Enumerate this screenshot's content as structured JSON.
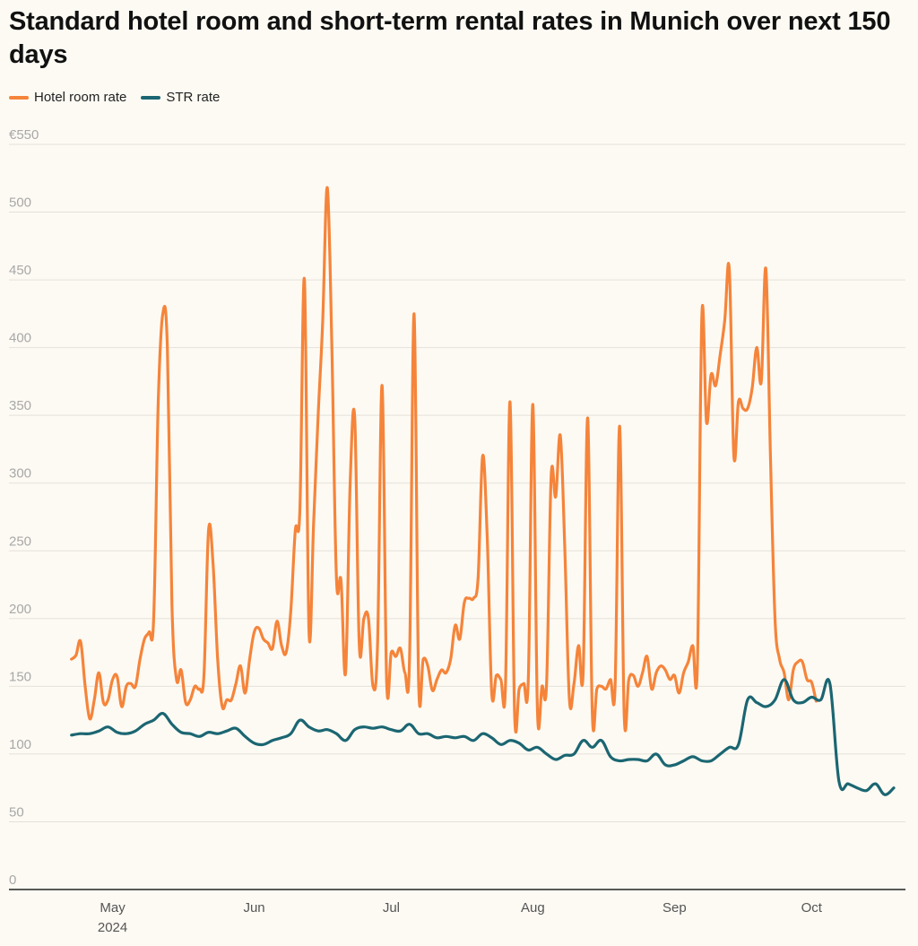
{
  "colors": {
    "hotel": "#f5843a",
    "str": "#1b6672",
    "grid": "#e4e1da",
    "axis": "#222222",
    "tick_text": "#a8a8a8",
    "x_tick_text": "#555555"
  },
  "chart_data": {
    "type": "line",
    "title": "Standard hotel room and short-term rental rates in Munich over next 150 days",
    "xlabel": "",
    "ylabel": "",
    "ylim": [
      0,
      550
    ],
    "xlim": [
      "2024-04-25",
      "2024-10-19"
    ],
    "y_ticks": [
      {
        "value": 550,
        "label": "€550"
      },
      {
        "value": 500,
        "label": "500"
      },
      {
        "value": 450,
        "label": "450"
      },
      {
        "value": 400,
        "label": "400"
      },
      {
        "value": 350,
        "label": "350"
      },
      {
        "value": 300,
        "label": "300"
      },
      {
        "value": 250,
        "label": "250"
      },
      {
        "value": 200,
        "label": "200"
      },
      {
        "value": 150,
        "label": "150"
      },
      {
        "value": 100,
        "label": "100"
      },
      {
        "value": 50,
        "label": "50"
      },
      {
        "value": 0,
        "label": "0"
      }
    ],
    "x_ticks": [
      {
        "date": "2024-05-01",
        "label": "May",
        "sublabel": "2024"
      },
      {
        "date": "2024-06-01",
        "label": "Jun",
        "sublabel": ""
      },
      {
        "date": "2024-07-01",
        "label": "Jul",
        "sublabel": ""
      },
      {
        "date": "2024-08-01",
        "label": "Aug",
        "sublabel": ""
      },
      {
        "date": "2024-09-01",
        "label": "Sep",
        "sublabel": ""
      },
      {
        "date": "2024-10-01",
        "label": "Oct",
        "sublabel": ""
      }
    ],
    "grid": true,
    "legend_position": "top-left",
    "series": [
      {
        "name": "Hotel room rate",
        "color_key": "hotel",
        "points": [
          [
            "2024-04-22",
            170
          ],
          [
            "2024-04-23",
            173
          ],
          [
            "2024-04-24",
            183
          ],
          [
            "2024-04-25",
            150
          ],
          [
            "2024-04-26",
            126
          ],
          [
            "2024-04-27",
            140
          ],
          [
            "2024-04-28",
            160
          ],
          [
            "2024-04-29",
            138
          ],
          [
            "2024-04-30",
            140
          ],
          [
            "2024-05-01",
            155
          ],
          [
            "2024-05-02",
            157
          ],
          [
            "2024-05-03",
            135
          ],
          [
            "2024-05-04",
            150
          ],
          [
            "2024-05-05",
            152
          ],
          [
            "2024-05-06",
            150
          ],
          [
            "2024-05-07",
            170
          ],
          [
            "2024-05-08",
            185
          ],
          [
            "2024-05-09",
            190
          ],
          [
            "2024-05-10",
            200
          ],
          [
            "2024-05-11",
            360
          ],
          [
            "2024-05-12",
            425
          ],
          [
            "2024-05-13",
            400
          ],
          [
            "2024-05-14",
            210
          ],
          [
            "2024-05-15",
            155
          ],
          [
            "2024-05-16",
            162
          ],
          [
            "2024-05-17",
            138
          ],
          [
            "2024-05-18",
            140
          ],
          [
            "2024-05-19",
            150
          ],
          [
            "2024-05-20",
            148
          ],
          [
            "2024-05-21",
            158
          ],
          [
            "2024-05-22",
            265
          ],
          [
            "2024-05-23",
            240
          ],
          [
            "2024-05-24",
            170
          ],
          [
            "2024-05-25",
            135
          ],
          [
            "2024-05-26",
            140
          ],
          [
            "2024-05-27",
            140
          ],
          [
            "2024-05-28",
            152
          ],
          [
            "2024-05-29",
            165
          ],
          [
            "2024-05-30",
            145
          ],
          [
            "2024-05-31",
            170
          ],
          [
            "2024-06-01",
            190
          ],
          [
            "2024-06-02",
            193
          ],
          [
            "2024-06-03",
            185
          ],
          [
            "2024-06-04",
            182
          ],
          [
            "2024-06-05",
            178
          ],
          [
            "2024-06-06",
            198
          ],
          [
            "2024-06-07",
            180
          ],
          [
            "2024-06-08",
            175
          ],
          [
            "2024-06-09",
            205
          ],
          [
            "2024-06-10",
            265
          ],
          [
            "2024-06-11",
            280
          ],
          [
            "2024-06-12",
            450
          ],
          [
            "2024-06-13",
            190
          ],
          [
            "2024-06-14",
            270
          ],
          [
            "2024-06-15",
            350
          ],
          [
            "2024-06-16",
            420
          ],
          [
            "2024-06-17",
            518
          ],
          [
            "2024-06-18",
            400
          ],
          [
            "2024-06-19",
            230
          ],
          [
            "2024-06-20",
            228
          ],
          [
            "2024-06-21",
            160
          ],
          [
            "2024-06-22",
            300
          ],
          [
            "2024-06-23",
            348
          ],
          [
            "2024-06-24",
            180
          ],
          [
            "2024-06-25",
            200
          ],
          [
            "2024-06-26",
            200
          ],
          [
            "2024-06-27",
            150
          ],
          [
            "2024-06-28",
            180
          ],
          [
            "2024-06-29",
            372
          ],
          [
            "2024-06-30",
            153
          ],
          [
            "2024-07-01",
            175
          ],
          [
            "2024-07-02",
            172
          ],
          [
            "2024-07-03",
            178
          ],
          [
            "2024-07-04",
            160
          ],
          [
            "2024-07-05",
            170
          ],
          [
            "2024-07-06",
            425
          ],
          [
            "2024-07-07",
            152
          ],
          [
            "2024-07-08",
            170
          ],
          [
            "2024-07-09",
            165
          ],
          [
            "2024-07-10",
            147
          ],
          [
            "2024-07-11",
            155
          ],
          [
            "2024-07-12",
            162
          ],
          [
            "2024-07-13",
            160
          ],
          [
            "2024-07-14",
            170
          ],
          [
            "2024-07-15",
            195
          ],
          [
            "2024-07-16",
            185
          ],
          [
            "2024-07-17",
            212
          ],
          [
            "2024-07-18",
            215
          ],
          [
            "2024-07-19",
            215
          ],
          [
            "2024-07-20",
            230
          ],
          [
            "2024-07-21",
            320
          ],
          [
            "2024-07-22",
            260
          ],
          [
            "2024-07-23",
            145
          ],
          [
            "2024-07-24",
            158
          ],
          [
            "2024-07-25",
            155
          ],
          [
            "2024-07-26",
            150
          ],
          [
            "2024-07-27",
            360
          ],
          [
            "2024-07-28",
            130
          ],
          [
            "2024-07-29",
            148
          ],
          [
            "2024-07-30",
            152
          ],
          [
            "2024-07-31",
            155
          ],
          [
            "2024-08-01",
            358
          ],
          [
            "2024-08-02",
            132
          ],
          [
            "2024-08-03",
            150
          ],
          [
            "2024-08-04",
            152
          ],
          [
            "2024-08-05",
            305
          ],
          [
            "2024-08-06",
            290
          ],
          [
            "2024-08-07",
            335
          ],
          [
            "2024-08-08",
            250
          ],
          [
            "2024-08-09",
            140
          ],
          [
            "2024-08-10",
            152
          ],
          [
            "2024-08-11",
            180
          ],
          [
            "2024-08-12",
            160
          ],
          [
            "2024-08-13",
            348
          ],
          [
            "2024-08-14",
            130
          ],
          [
            "2024-08-15",
            148
          ],
          [
            "2024-08-16",
            150
          ],
          [
            "2024-08-17",
            148
          ],
          [
            "2024-08-18",
            155
          ],
          [
            "2024-08-19",
            150
          ],
          [
            "2024-08-20",
            342
          ],
          [
            "2024-08-21",
            128
          ],
          [
            "2024-08-22",
            155
          ],
          [
            "2024-08-23",
            158
          ],
          [
            "2024-08-24",
            150
          ],
          [
            "2024-08-25",
            160
          ],
          [
            "2024-08-26",
            172
          ],
          [
            "2024-08-27",
            148
          ],
          [
            "2024-08-28",
            160
          ],
          [
            "2024-08-29",
            165
          ],
          [
            "2024-08-30",
            162
          ],
          [
            "2024-08-31",
            155
          ],
          [
            "2024-09-01",
            158
          ],
          [
            "2024-09-02",
            145
          ],
          [
            "2024-09-03",
            160
          ],
          [
            "2024-09-04",
            168
          ],
          [
            "2024-09-05",
            180
          ],
          [
            "2024-09-06",
            165
          ],
          [
            "2024-09-07",
            425
          ],
          [
            "2024-09-08",
            345
          ],
          [
            "2024-09-09",
            380
          ],
          [
            "2024-09-10",
            372
          ],
          [
            "2024-09-11",
            395
          ],
          [
            "2024-09-12",
            420
          ],
          [
            "2024-09-13",
            458
          ],
          [
            "2024-09-14",
            320
          ],
          [
            "2024-09-15",
            360
          ],
          [
            "2024-09-16",
            355
          ],
          [
            "2024-09-17",
            355
          ],
          [
            "2024-09-18",
            370
          ],
          [
            "2024-09-19",
            400
          ],
          [
            "2024-09-20",
            375
          ],
          [
            "2024-09-21",
            458
          ],
          [
            "2024-09-22",
            320
          ],
          [
            "2024-09-23",
            200
          ],
          [
            "2024-09-24",
            170
          ],
          [
            "2024-09-25",
            160
          ],
          [
            "2024-09-26",
            140
          ],
          [
            "2024-09-27",
            162
          ],
          [
            "2024-09-28",
            168
          ],
          [
            "2024-09-29",
            168
          ],
          [
            "2024-09-30",
            155
          ],
          [
            "2024-10-01",
            153
          ],
          [
            "2024-10-02",
            139
          ]
        ]
      },
      {
        "name": "STR rate",
        "color_key": "str",
        "points": [
          [
            "2024-04-22",
            114
          ],
          [
            "2024-04-24",
            115
          ],
          [
            "2024-04-26",
            115
          ],
          [
            "2024-04-28",
            117
          ],
          [
            "2024-04-30",
            120
          ],
          [
            "2024-05-02",
            116
          ],
          [
            "2024-05-04",
            115
          ],
          [
            "2024-05-06",
            117
          ],
          [
            "2024-05-08",
            122
          ],
          [
            "2024-05-10",
            125
          ],
          [
            "2024-05-12",
            130
          ],
          [
            "2024-05-14",
            122
          ],
          [
            "2024-05-16",
            116
          ],
          [
            "2024-05-18",
            115
          ],
          [
            "2024-05-20",
            113
          ],
          [
            "2024-05-22",
            116
          ],
          [
            "2024-05-24",
            115
          ],
          [
            "2024-05-26",
            117
          ],
          [
            "2024-05-28",
            119
          ],
          [
            "2024-05-30",
            113
          ],
          [
            "2024-06-01",
            108
          ],
          [
            "2024-06-03",
            107
          ],
          [
            "2024-06-05",
            110
          ],
          [
            "2024-06-07",
            112
          ],
          [
            "2024-06-09",
            115
          ],
          [
            "2024-06-11",
            125
          ],
          [
            "2024-06-13",
            120
          ],
          [
            "2024-06-15",
            117
          ],
          [
            "2024-06-17",
            118
          ],
          [
            "2024-06-19",
            115
          ],
          [
            "2024-06-21",
            110
          ],
          [
            "2024-06-23",
            118
          ],
          [
            "2024-06-25",
            120
          ],
          [
            "2024-06-27",
            119
          ],
          [
            "2024-06-29",
            120
          ],
          [
            "2024-07-01",
            118
          ],
          [
            "2024-07-03",
            117
          ],
          [
            "2024-07-05",
            122
          ],
          [
            "2024-07-07",
            115
          ],
          [
            "2024-07-09",
            115
          ],
          [
            "2024-07-11",
            112
          ],
          [
            "2024-07-13",
            113
          ],
          [
            "2024-07-15",
            112
          ],
          [
            "2024-07-17",
            113
          ],
          [
            "2024-07-19",
            110
          ],
          [
            "2024-07-21",
            115
          ],
          [
            "2024-07-23",
            112
          ],
          [
            "2024-07-25",
            107
          ],
          [
            "2024-07-27",
            110
          ],
          [
            "2024-07-29",
            108
          ],
          [
            "2024-07-31",
            103
          ],
          [
            "2024-08-02",
            105
          ],
          [
            "2024-08-04",
            100
          ],
          [
            "2024-08-06",
            96
          ],
          [
            "2024-08-08",
            99
          ],
          [
            "2024-08-10",
            100
          ],
          [
            "2024-08-12",
            110
          ],
          [
            "2024-08-14",
            105
          ],
          [
            "2024-08-16",
            110
          ],
          [
            "2024-08-18",
            98
          ],
          [
            "2024-08-20",
            95
          ],
          [
            "2024-08-22",
            96
          ],
          [
            "2024-08-24",
            96
          ],
          [
            "2024-08-26",
            95
          ],
          [
            "2024-08-28",
            100
          ],
          [
            "2024-08-30",
            92
          ],
          [
            "2024-09-01",
            92
          ],
          [
            "2024-09-03",
            95
          ],
          [
            "2024-09-05",
            98
          ],
          [
            "2024-09-07",
            95
          ],
          [
            "2024-09-09",
            95
          ],
          [
            "2024-09-11",
            100
          ],
          [
            "2024-09-13",
            105
          ],
          [
            "2024-09-15",
            107
          ],
          [
            "2024-09-17",
            140
          ],
          [
            "2024-09-19",
            138
          ],
          [
            "2024-09-21",
            135
          ],
          [
            "2024-09-23",
            140
          ],
          [
            "2024-09-25",
            155
          ],
          [
            "2024-09-27",
            140
          ],
          [
            "2024-09-29",
            138
          ],
          [
            "2024-10-01",
            142
          ],
          [
            "2024-10-03",
            140
          ],
          [
            "2024-10-05",
            152
          ],
          [
            "2024-10-07",
            80
          ],
          [
            "2024-10-09",
            78
          ],
          [
            "2024-10-11",
            75
          ],
          [
            "2024-10-13",
            73
          ],
          [
            "2024-10-15",
            78
          ],
          [
            "2024-10-17",
            70
          ],
          [
            "2024-10-19",
            75
          ]
        ]
      }
    ]
  }
}
